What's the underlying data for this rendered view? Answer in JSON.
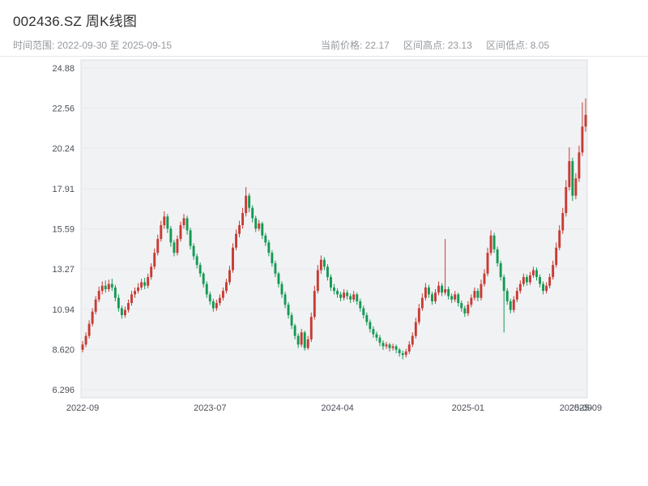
{
  "header": {
    "title": "002436.SZ 周K线图",
    "range": "时间范围: 2022-09-30 至 2025-09-15",
    "stats": [
      "当前价格: 22.17",
      "区间高点: 23.13",
      "区间低点: 8.05"
    ]
  },
  "chart_data": {
    "type": "candlestick",
    "title": "002436.SZ 周K线图",
    "frequency": "weekly",
    "date_start": "2022-09-30",
    "date_end": "2025-09-15",
    "current_price": 22.17,
    "range_high": 23.13,
    "range_low": 8.05,
    "ylim": [
      6.296,
      24.88
    ],
    "y_ticks": [
      "24.88",
      "22.56",
      "20.24",
      "17.91",
      "15.59",
      "13.27",
      "10.94",
      "8.620",
      "6.296"
    ],
    "x_ticks": [
      {
        "label": "2022-09",
        "index": 0
      },
      {
        "label": "2023-07",
        "index": 39
      },
      {
        "label": "2024-04",
        "index": 78
      },
      {
        "label": "2025-01",
        "index": 118
      },
      {
        "label": "2025-09",
        "index": 151
      },
      {
        "label": "2025-09",
        "index": 154
      }
    ],
    "colors": {
      "up": "#c73b33",
      "down": "#149a54",
      "axis_text": "#4a4f57",
      "panel": "#f1f2f4",
      "panel_border": "#d9dce1",
      "grid": "#e7eaee"
    },
    "ohlc": [
      [
        8.6,
        9.1,
        8.45,
        8.9
      ],
      [
        8.9,
        9.6,
        8.75,
        9.4
      ],
      [
        9.4,
        10.3,
        9.25,
        10.1
      ],
      [
        10.1,
        11.0,
        9.95,
        10.8
      ],
      [
        10.8,
        11.7,
        10.65,
        11.5
      ],
      [
        11.5,
        12.25,
        11.35,
        12.0
      ],
      [
        12.0,
        12.55,
        11.8,
        12.3
      ],
      [
        12.3,
        12.6,
        11.9,
        12.1
      ],
      [
        12.1,
        12.65,
        11.95,
        12.4
      ],
      [
        12.4,
        12.7,
        12.0,
        12.2
      ],
      [
        12.2,
        12.35,
        11.4,
        11.6
      ],
      [
        11.6,
        11.8,
        10.8,
        11.0
      ],
      [
        11.0,
        11.15,
        10.4,
        10.6
      ],
      [
        10.6,
        11.1,
        10.45,
        10.9
      ],
      [
        10.9,
        11.5,
        10.75,
        11.3
      ],
      [
        11.3,
        12.0,
        11.15,
        11.8
      ],
      [
        11.8,
        12.2,
        11.6,
        12.0
      ],
      [
        12.0,
        12.45,
        11.85,
        12.2
      ],
      [
        12.2,
        12.7,
        12.05,
        12.5
      ],
      [
        12.5,
        12.75,
        12.1,
        12.3
      ],
      [
        12.3,
        13.0,
        12.15,
        12.8
      ],
      [
        12.8,
        13.6,
        12.65,
        13.4
      ],
      [
        13.4,
        14.45,
        13.25,
        14.2
      ],
      [
        14.2,
        15.25,
        14.05,
        15.0
      ],
      [
        15.0,
        16.05,
        14.85,
        15.8
      ],
      [
        15.8,
        16.6,
        15.6,
        16.3
      ],
      [
        16.3,
        16.45,
        15.35,
        15.6
      ],
      [
        15.6,
        15.75,
        14.55,
        14.8
      ],
      [
        14.8,
        14.95,
        14.0,
        14.2
      ],
      [
        14.2,
        15.2,
        14.05,
        15.0
      ],
      [
        15.0,
        16.0,
        14.85,
        15.8
      ],
      [
        15.8,
        16.45,
        15.6,
        16.2
      ],
      [
        16.2,
        16.35,
        15.25,
        15.5
      ],
      [
        15.5,
        15.65,
        14.4,
        14.6
      ],
      [
        14.6,
        14.75,
        13.8,
        14.0
      ],
      [
        14.0,
        14.15,
        13.3,
        13.5
      ],
      [
        13.5,
        13.65,
        12.8,
        13.0
      ],
      [
        13.0,
        13.1,
        12.2,
        12.4
      ],
      [
        12.4,
        12.55,
        11.6,
        11.8
      ],
      [
        11.8,
        11.95,
        11.2,
        11.4
      ],
      [
        11.4,
        11.55,
        10.8,
        11.0
      ],
      [
        11.0,
        11.5,
        10.85,
        11.3
      ],
      [
        11.3,
        11.8,
        11.15,
        11.6
      ],
      [
        11.6,
        12.2,
        11.45,
        12.0
      ],
      [
        12.0,
        12.7,
        11.85,
        12.5
      ],
      [
        12.5,
        13.45,
        12.35,
        13.2
      ],
      [
        13.2,
        14.75,
        13.05,
        14.5
      ],
      [
        14.5,
        15.55,
        14.35,
        15.3
      ],
      [
        15.3,
        16.05,
        15.1,
        15.8
      ],
      [
        15.8,
        16.8,
        15.6,
        16.5
      ],
      [
        16.5,
        18.0,
        16.3,
        17.5
      ],
      [
        17.5,
        17.65,
        16.55,
        16.8
      ],
      [
        16.8,
        16.95,
        15.95,
        16.2
      ],
      [
        16.2,
        16.35,
        15.4,
        15.6
      ],
      [
        15.6,
        16.1,
        15.45,
        15.9
      ],
      [
        15.9,
        16.0,
        15.0,
        15.2
      ],
      [
        15.2,
        15.35,
        14.6,
        14.8
      ],
      [
        14.8,
        14.95,
        14.0,
        14.2
      ],
      [
        14.2,
        14.35,
        13.4,
        13.6
      ],
      [
        13.6,
        13.75,
        12.8,
        13.0
      ],
      [
        13.0,
        13.1,
        12.2,
        12.4
      ],
      [
        12.4,
        12.55,
        11.6,
        11.8
      ],
      [
        11.8,
        11.95,
        11.0,
        11.2
      ],
      [
        11.2,
        11.35,
        10.4,
        10.6
      ],
      [
        10.6,
        10.75,
        9.8,
        10.0
      ],
      [
        10.0,
        10.1,
        9.2,
        9.4
      ],
      [
        9.4,
        9.55,
        8.7,
        8.9
      ],
      [
        8.9,
        9.8,
        8.75,
        9.6
      ],
      [
        9.6,
        9.7,
        8.55,
        8.7
      ],
      [
        8.7,
        9.4,
        8.6,
        9.2
      ],
      [
        9.2,
        10.75,
        9.05,
        10.5
      ],
      [
        10.5,
        12.3,
        10.35,
        12.0
      ],
      [
        12.0,
        13.5,
        11.85,
        13.2
      ],
      [
        13.2,
        14.05,
        13.0,
        13.8
      ],
      [
        13.8,
        13.95,
        13.2,
        13.4
      ],
      [
        13.4,
        13.55,
        12.6,
        12.8
      ],
      [
        12.8,
        12.95,
        12.0,
        12.2
      ],
      [
        12.2,
        12.4,
        11.8,
        12.0
      ],
      [
        12.0,
        12.15,
        11.6,
        11.8
      ],
      [
        11.8,
        11.95,
        11.4,
        11.6
      ],
      [
        11.6,
        12.1,
        11.45,
        11.9
      ],
      [
        11.9,
        12.05,
        11.5,
        11.7
      ],
      [
        11.7,
        11.85,
        11.3,
        11.5
      ],
      [
        11.5,
        12.0,
        11.35,
        11.8
      ],
      [
        11.8,
        11.9,
        11.2,
        11.4
      ],
      [
        11.4,
        11.55,
        10.8,
        11.0
      ],
      [
        11.0,
        11.15,
        10.4,
        10.6
      ],
      [
        10.6,
        10.75,
        10.0,
        10.2
      ],
      [
        10.2,
        10.35,
        9.6,
        9.8
      ],
      [
        9.8,
        9.95,
        9.3,
        9.5
      ],
      [
        9.5,
        9.65,
        9.1,
        9.3
      ],
      [
        9.3,
        9.45,
        8.8,
        9.0
      ],
      [
        9.0,
        9.15,
        8.6,
        8.8
      ],
      [
        8.8,
        9.05,
        8.65,
        8.9
      ],
      [
        8.9,
        9.0,
        8.5,
        8.7
      ],
      [
        8.7,
        8.95,
        8.55,
        8.8
      ],
      [
        8.8,
        8.9,
        8.4,
        8.6
      ],
      [
        8.6,
        8.7,
        8.2,
        8.4
      ],
      [
        8.4,
        8.55,
        8.05,
        8.3
      ],
      [
        8.3,
        8.65,
        8.15,
        8.5
      ],
      [
        8.5,
        9.1,
        8.35,
        8.9
      ],
      [
        8.9,
        9.6,
        8.75,
        9.4
      ],
      [
        9.4,
        10.45,
        9.25,
        10.2
      ],
      [
        10.2,
        11.25,
        10.05,
        11.0
      ],
      [
        11.0,
        11.85,
        10.85,
        11.6
      ],
      [
        11.6,
        12.45,
        11.45,
        12.2
      ],
      [
        12.2,
        12.35,
        11.6,
        11.8
      ],
      [
        11.8,
        11.95,
        11.2,
        11.4
      ],
      [
        11.4,
        12.1,
        11.25,
        11.9
      ],
      [
        11.9,
        12.55,
        11.75,
        12.3
      ],
      [
        12.3,
        12.45,
        11.7,
        11.9
      ],
      [
        11.9,
        15.0,
        11.75,
        12.1
      ],
      [
        12.1,
        12.25,
        11.5,
        11.7
      ],
      [
        11.7,
        11.85,
        11.3,
        11.5
      ],
      [
        11.5,
        12.0,
        11.35,
        11.8
      ],
      [
        11.8,
        11.9,
        11.1,
        11.3
      ],
      [
        11.3,
        11.45,
        10.8,
        11.0
      ],
      [
        11.0,
        11.15,
        10.5,
        10.7
      ],
      [
        10.7,
        11.4,
        10.55,
        11.2
      ],
      [
        11.2,
        11.8,
        11.05,
        11.6
      ],
      [
        11.6,
        12.2,
        11.45,
        12.0
      ],
      [
        12.0,
        12.15,
        11.4,
        11.6
      ],
      [
        11.6,
        12.65,
        11.45,
        12.4
      ],
      [
        12.4,
        13.25,
        12.25,
        13.0
      ],
      [
        13.0,
        14.5,
        12.85,
        14.2
      ],
      [
        14.2,
        15.5,
        14.05,
        15.2
      ],
      [
        15.2,
        15.35,
        14.2,
        14.4
      ],
      [
        14.4,
        14.55,
        13.4,
        13.6
      ],
      [
        13.6,
        13.75,
        12.6,
        12.8
      ],
      [
        12.8,
        12.95,
        9.6,
        12.0
      ],
      [
        12.0,
        12.15,
        11.2,
        11.4
      ],
      [
        11.4,
        11.55,
        10.7,
        10.9
      ],
      [
        10.9,
        11.7,
        10.75,
        11.5
      ],
      [
        11.5,
        12.2,
        11.35,
        12.0
      ],
      [
        12.0,
        12.6,
        11.85,
        12.4
      ],
      [
        12.4,
        13.0,
        12.25,
        12.8
      ],
      [
        12.8,
        12.95,
        12.3,
        12.5
      ],
      [
        12.5,
        13.1,
        12.35,
        12.9
      ],
      [
        12.9,
        13.4,
        12.75,
        13.2
      ],
      [
        13.2,
        13.35,
        12.6,
        12.8
      ],
      [
        12.8,
        12.95,
        12.2,
        12.4
      ],
      [
        12.4,
        12.55,
        11.8,
        12.0
      ],
      [
        12.0,
        12.5,
        11.85,
        12.3
      ],
      [
        12.3,
        13.0,
        12.15,
        12.8
      ],
      [
        12.8,
        13.75,
        12.65,
        13.5
      ],
      [
        13.5,
        14.8,
        13.35,
        14.5
      ],
      [
        14.5,
        15.8,
        14.35,
        15.5
      ],
      [
        15.5,
        16.8,
        15.3,
        16.5
      ],
      [
        16.5,
        18.4,
        16.3,
        18.0
      ],
      [
        18.0,
        20.3,
        17.8,
        19.5
      ],
      [
        19.5,
        19.7,
        17.2,
        17.5
      ],
      [
        17.5,
        18.8,
        17.3,
        18.5
      ],
      [
        18.5,
        20.4,
        18.3,
        20.0
      ],
      [
        20.0,
        22.9,
        19.8,
        21.5
      ],
      [
        21.5,
        23.13,
        21.2,
        22.17
      ]
    ]
  }
}
